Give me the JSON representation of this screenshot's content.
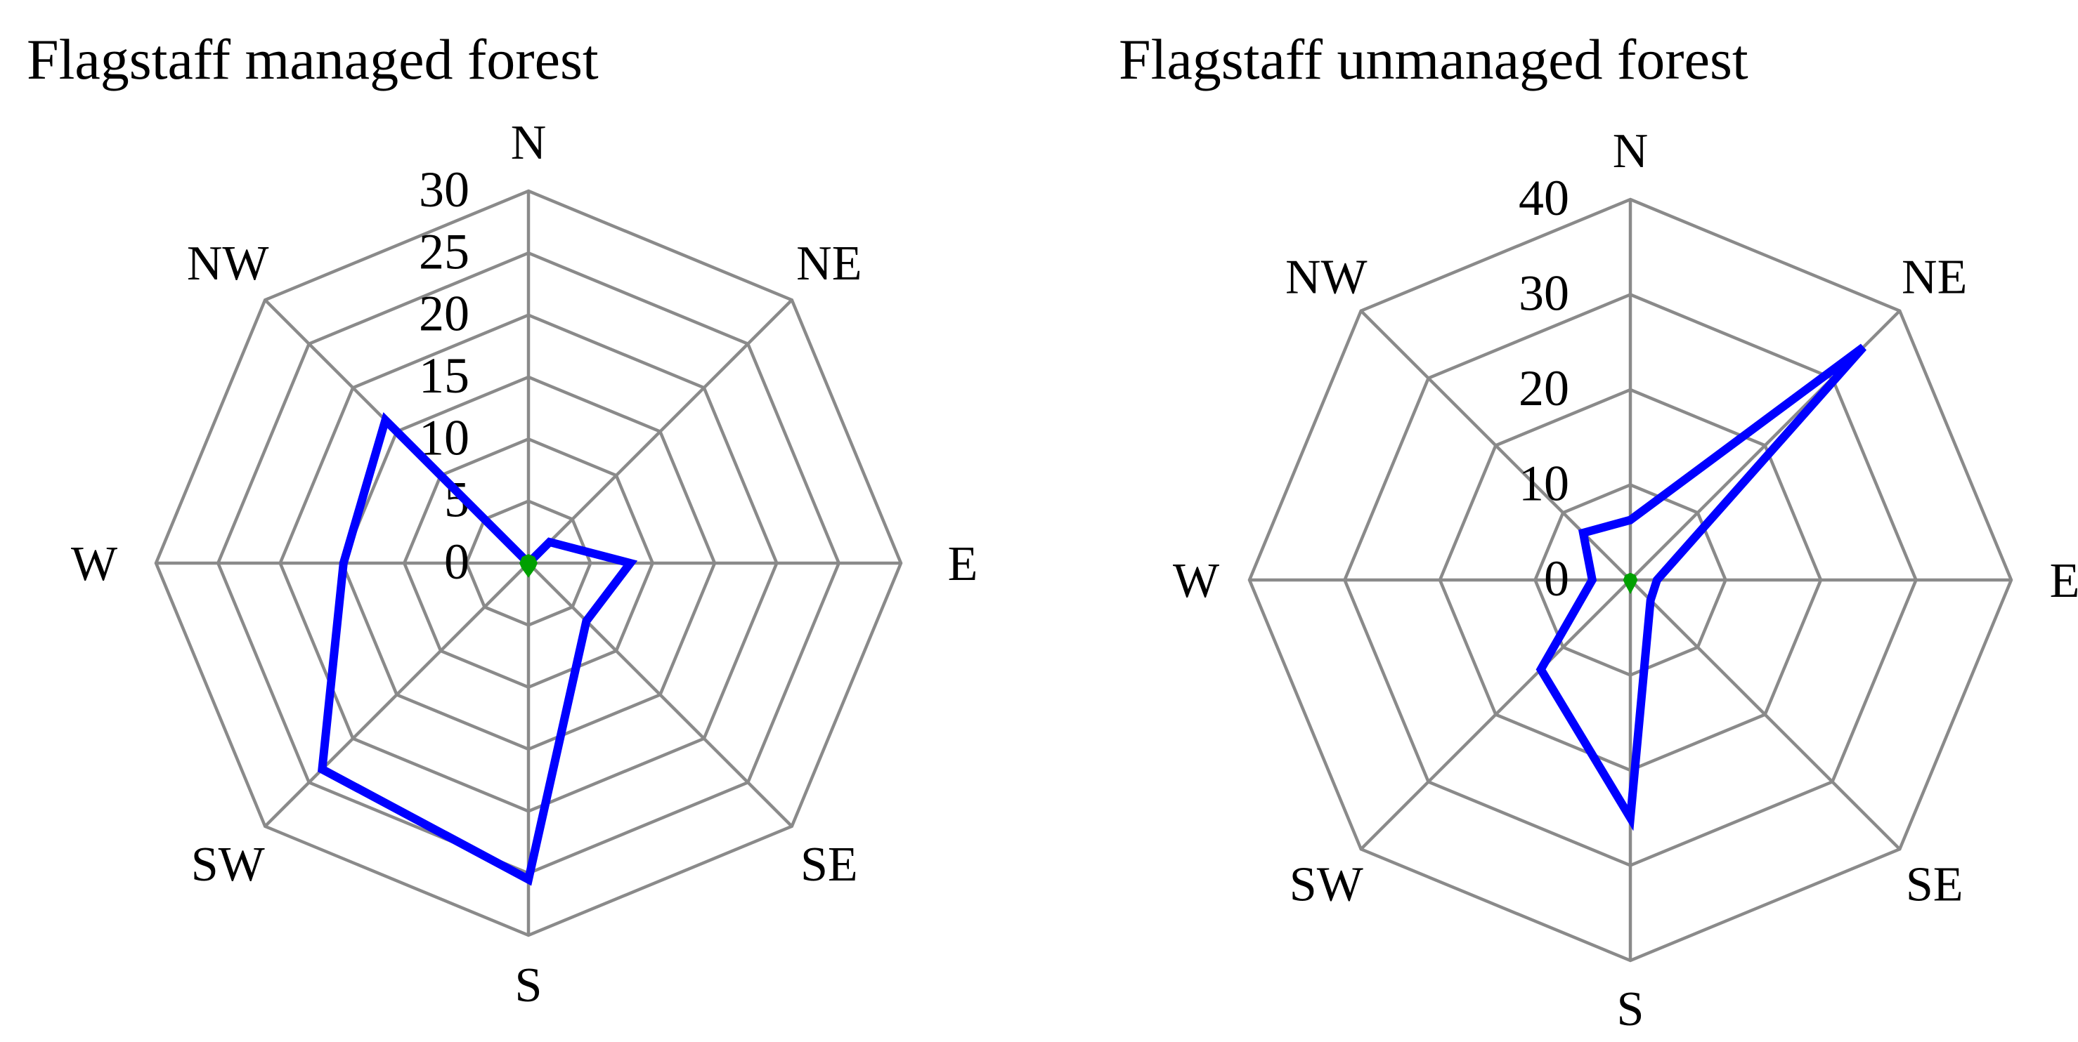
{
  "chart_data": [
    {
      "type": "radar",
      "title": "Flagstaff managed forest",
      "axes": [
        "N",
        "NE",
        "E",
        "SE",
        "S",
        "SW",
        "W",
        "NW"
      ],
      "rmax": 30,
      "ticks": [
        0,
        5,
        10,
        15,
        20,
        25,
        30
      ],
      "tick_labels": [
        "0",
        "5",
        "10",
        "15",
        "20",
        "25",
        "30"
      ],
      "grid": true,
      "series": [
        {
          "color": "#0000ff",
          "values": [
            0,
            2.4,
            8.2,
            6.6,
            25.5,
            23.5,
            14.9,
            16.3
          ]
        },
        {
          "color": "#00a000",
          "values": [
            0.3,
            0.3,
            0.3,
            0.3,
            0.5,
            0.3,
            0.3,
            0.3
          ]
        }
      ]
    },
    {
      "type": "radar",
      "title": "Flagstaff unmanaged forest",
      "axes": [
        "N",
        "NE",
        "E",
        "SE",
        "S",
        "SW",
        "W",
        "NW"
      ],
      "rmax": 40,
      "ticks": [
        0,
        10,
        20,
        30,
        40
      ],
      "tick_labels": [
        "0",
        "10",
        "20",
        "30",
        "40"
      ],
      "grid": true,
      "series": [
        {
          "color": "#0000ff",
          "values": [
            6.3,
            34.6,
            2.8,
            3.0,
            25.0,
            13.3,
            4.0,
            7.0
          ]
        },
        {
          "color": "#00a000",
          "values": [
            0.2,
            0.2,
            0.2,
            0.2,
            0.4,
            0.2,
            0.2,
            0.2
          ]
        }
      ]
    }
  ]
}
